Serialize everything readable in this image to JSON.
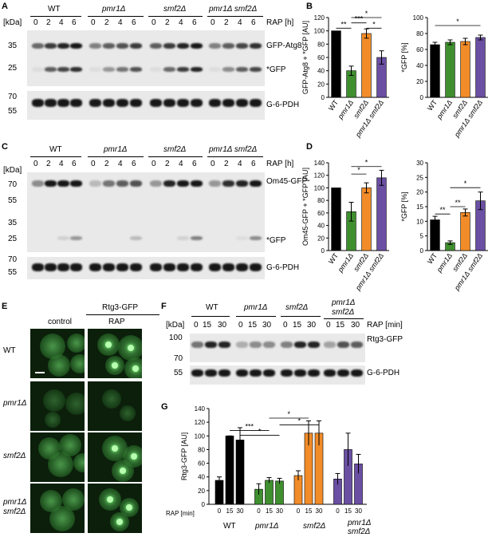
{
  "panels": {
    "A": "A",
    "B": "B",
    "C": "C",
    "D": "D",
    "E": "E",
    "F": "F",
    "G": "G"
  },
  "strains": [
    "WT",
    "pmr1Δ",
    "smf2Δ",
    "pmr1Δ smf2Δ"
  ],
  "strainsF": [
    "WT",
    "pmr1Δ",
    "smf2Δ",
    "pmr1Δ",
    "smf2Δ"
  ],
  "kda": "[kDa]",
  "rap_h": "RAP [h]",
  "rap_min": "RAP [min]",
  "times_h": [
    "0",
    "2",
    "4",
    "6"
  ],
  "times_min": [
    "0",
    "15",
    "30"
  ],
  "blotA": {
    "markers": [
      "35",
      "25",
      "70",
      "55"
    ],
    "labels": [
      "GFP-Atg8",
      "*GFP",
      "G-6-PDH"
    ]
  },
  "blotC": {
    "markers": [
      "70",
      "55",
      "35",
      "25",
      "70",
      "55"
    ],
    "labels": [
      "Om45-GFP",
      "*GFP",
      "G-6-PDH"
    ]
  },
  "blotF": {
    "markers": [
      "100",
      "70",
      "55"
    ],
    "labels": [
      "Rtg3-GFP",
      "G-6-PDH"
    ]
  },
  "panelE": {
    "title": "Rtg3-GFP",
    "cols": [
      "control",
      "RAP"
    ],
    "rows": [
      "WT",
      "pmr1Δ",
      "smf2Δ",
      "pmr1Δ",
      "smf2Δ"
    ]
  },
  "colors": {
    "WT": "#000000",
    "pmr1": "#3f8f2f",
    "smf2": "#f28c28",
    "double": "#6a4fa3"
  },
  "chart_data": [
    {
      "type": "bar",
      "title": "",
      "ylabel": "GFP-Atg8 + *GFP [AU]",
      "ylim": [
        0,
        120
      ],
      "yticks": [
        0,
        20,
        40,
        60,
        80,
        100,
        120
      ],
      "categories": [
        "WT",
        "pmr1Δ",
        "smf2Δ",
        "pmr1Δ smf2Δ"
      ],
      "values": [
        100,
        40,
        96,
        60
      ],
      "errors": [
        0,
        7,
        7,
        10
      ],
      "significance": [
        "**",
        "***",
        "*",
        "*"
      ]
    },
    {
      "type": "bar",
      "title": "",
      "ylabel": "*GFP [%]",
      "ylim": [
        0,
        100
      ],
      "yticks": [
        0,
        20,
        40,
        60,
        80,
        100
      ],
      "categories": [
        "WT",
        "pmr1Δ",
        "smf2Δ",
        "pmr1Δ smf2Δ"
      ],
      "values": [
        66,
        69,
        70,
        75
      ],
      "errors": [
        3,
        3,
        4,
        3
      ],
      "significance": [
        "*"
      ]
    },
    {
      "type": "bar",
      "title": "",
      "ylabel": "Om45-GFP + *GFP [AU]",
      "ylim": [
        0,
        140
      ],
      "yticks": [
        0,
        20,
        40,
        60,
        80,
        100,
        120,
        140
      ],
      "categories": [
        "WT",
        "pmr1Δ",
        "smf2Δ",
        "pmr1Δ smf2Δ"
      ],
      "values": [
        100,
        62,
        100,
        116
      ],
      "errors": [
        0,
        15,
        8,
        12
      ],
      "significance": [
        "*",
        "*"
      ]
    },
    {
      "type": "bar",
      "title": "",
      "ylabel": "*GFP [%]",
      "ylim": [
        0,
        30
      ],
      "yticks": [
        0,
        5,
        10,
        15,
        20,
        25,
        30
      ],
      "categories": [
        "WT",
        "pmr1Δ",
        "smf2Δ",
        "pmr1Δ smf2Δ"
      ],
      "values": [
        10.5,
        2.7,
        13,
        17
      ],
      "errors": [
        1.2,
        0.6,
        1.2,
        3
      ],
      "significance": [
        "**",
        "**",
        "*"
      ]
    },
    {
      "type": "bar",
      "title": "",
      "ylabel": "Rtg3-GFP [AU]",
      "ylim": [
        0,
        140
      ],
      "yticks": [
        0,
        20,
        40,
        60,
        80,
        100,
        120,
        140
      ],
      "xlabel": "RAP [min]",
      "categories": [
        "0",
        "15",
        "30"
      ],
      "series": [
        {
          "name": "WT",
          "values": [
            35,
            100,
            94
          ],
          "errors": [
            5,
            0,
            18
          ]
        },
        {
          "name": "pmr1Δ",
          "values": [
            22,
            35,
            34
          ],
          "errors": [
            8,
            4,
            4
          ]
        },
        {
          "name": "smf2Δ",
          "values": [
            42,
            104,
            104
          ],
          "errors": [
            7,
            18,
            18
          ]
        },
        {
          "name": "pmr1Δ smf2Δ",
          "values": [
            37,
            80,
            59
          ],
          "errors": [
            8,
            24,
            14
          ]
        }
      ],
      "significance": [
        "***",
        "*",
        "*",
        "*"
      ]
    }
  ]
}
